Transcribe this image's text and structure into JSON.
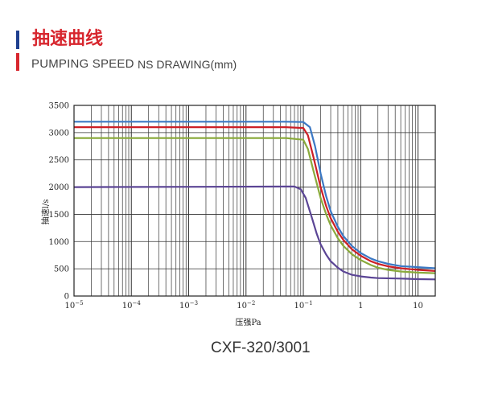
{
  "header": {
    "title_cn": "抽速曲线",
    "subtitle_en": "PUMPING SPEED",
    "subtitle_en2": "NS DRAWING(mm)"
  },
  "model": "CXF-320/3001",
  "colors": {
    "accent_red": "#d7262e",
    "accent_blue": "#1f3f8f"
  },
  "chart_data": {
    "type": "line",
    "title": "",
    "xlabel": "压强Pa",
    "ylabel": "抽速l/s",
    "x_scale": "log",
    "xlim": [
      1e-05,
      20
    ],
    "ylim": [
      0,
      3500
    ],
    "grid": true,
    "y_ticks": [
      0,
      500,
      1000,
      1500,
      2000,
      2500,
      3000,
      3500
    ],
    "x_tick_labels": [
      {
        "value": 1e-05,
        "base": "10",
        "exp": "−5"
      },
      {
        "value": 0.0001,
        "base": "10",
        "exp": "−4"
      },
      {
        "value": 0.001,
        "base": "10",
        "exp": "−3"
      },
      {
        "value": 0.01,
        "base": "10",
        "exp": "−2"
      },
      {
        "value": 0.1,
        "base": "10",
        "exp": "−1"
      },
      {
        "value": 1,
        "base": "1",
        "exp": ""
      },
      {
        "value": 10,
        "base": "10",
        "exp": ""
      }
    ],
    "series": [
      {
        "color": "#3b78c4",
        "points": [
          [
            1e-05,
            3200
          ],
          [
            0.05,
            3200
          ],
          [
            0.1,
            3195
          ],
          [
            0.13,
            3100
          ],
          [
            0.16,
            2750
          ],
          [
            0.2,
            2250
          ],
          [
            0.25,
            1830
          ],
          [
            0.3,
            1560
          ],
          [
            0.4,
            1270
          ],
          [
            0.5,
            1100
          ],
          [
            0.7,
            920
          ],
          [
            1,
            790
          ],
          [
            1.5,
            690
          ],
          [
            2,
            640
          ],
          [
            3,
            590
          ],
          [
            5,
            550
          ],
          [
            10,
            530
          ],
          [
            20,
            510
          ]
        ]
      },
      {
        "color": "#cc1f26",
        "points": [
          [
            1e-05,
            3100
          ],
          [
            0.05,
            3100
          ],
          [
            0.1,
            3085
          ],
          [
            0.12,
            2950
          ],
          [
            0.15,
            2550
          ],
          [
            0.2,
            2000
          ],
          [
            0.25,
            1650
          ],
          [
            0.3,
            1430
          ],
          [
            0.4,
            1180
          ],
          [
            0.5,
            1030
          ],
          [
            0.7,
            860
          ],
          [
            1,
            740
          ],
          [
            1.5,
            640
          ],
          [
            2,
            590
          ],
          [
            3,
            545
          ],
          [
            5,
            510
          ],
          [
            10,
            480
          ],
          [
            20,
            460
          ]
        ]
      },
      {
        "color": "#8aaa3c",
        "points": [
          [
            1e-05,
            2900
          ],
          [
            0.05,
            2900
          ],
          [
            0.1,
            2870
          ],
          [
            0.12,
            2700
          ],
          [
            0.15,
            2300
          ],
          [
            0.2,
            1800
          ],
          [
            0.25,
            1500
          ],
          [
            0.3,
            1300
          ],
          [
            0.4,
            1060
          ],
          [
            0.5,
            920
          ],
          [
            0.7,
            770
          ],
          [
            1,
            660
          ],
          [
            1.5,
            570
          ],
          [
            2,
            520
          ],
          [
            3,
            480
          ],
          [
            5,
            450
          ],
          [
            10,
            430
          ],
          [
            20,
            420
          ]
        ]
      },
      {
        "color": "#5b4595",
        "points": [
          [
            1e-05,
            2000
          ],
          [
            0.05,
            2010
          ],
          [
            0.07,
            2010
          ],
          [
            0.09,
            1960
          ],
          [
            0.11,
            1800
          ],
          [
            0.14,
            1450
          ],
          [
            0.17,
            1150
          ],
          [
            0.2,
            950
          ],
          [
            0.25,
            760
          ],
          [
            0.3,
            640
          ],
          [
            0.4,
            520
          ],
          [
            0.5,
            450
          ],
          [
            0.7,
            390
          ],
          [
            1,
            360
          ],
          [
            1.5,
            340
          ],
          [
            2,
            330
          ],
          [
            5,
            320
          ],
          [
            10,
            310
          ],
          [
            20,
            305
          ]
        ]
      }
    ]
  }
}
